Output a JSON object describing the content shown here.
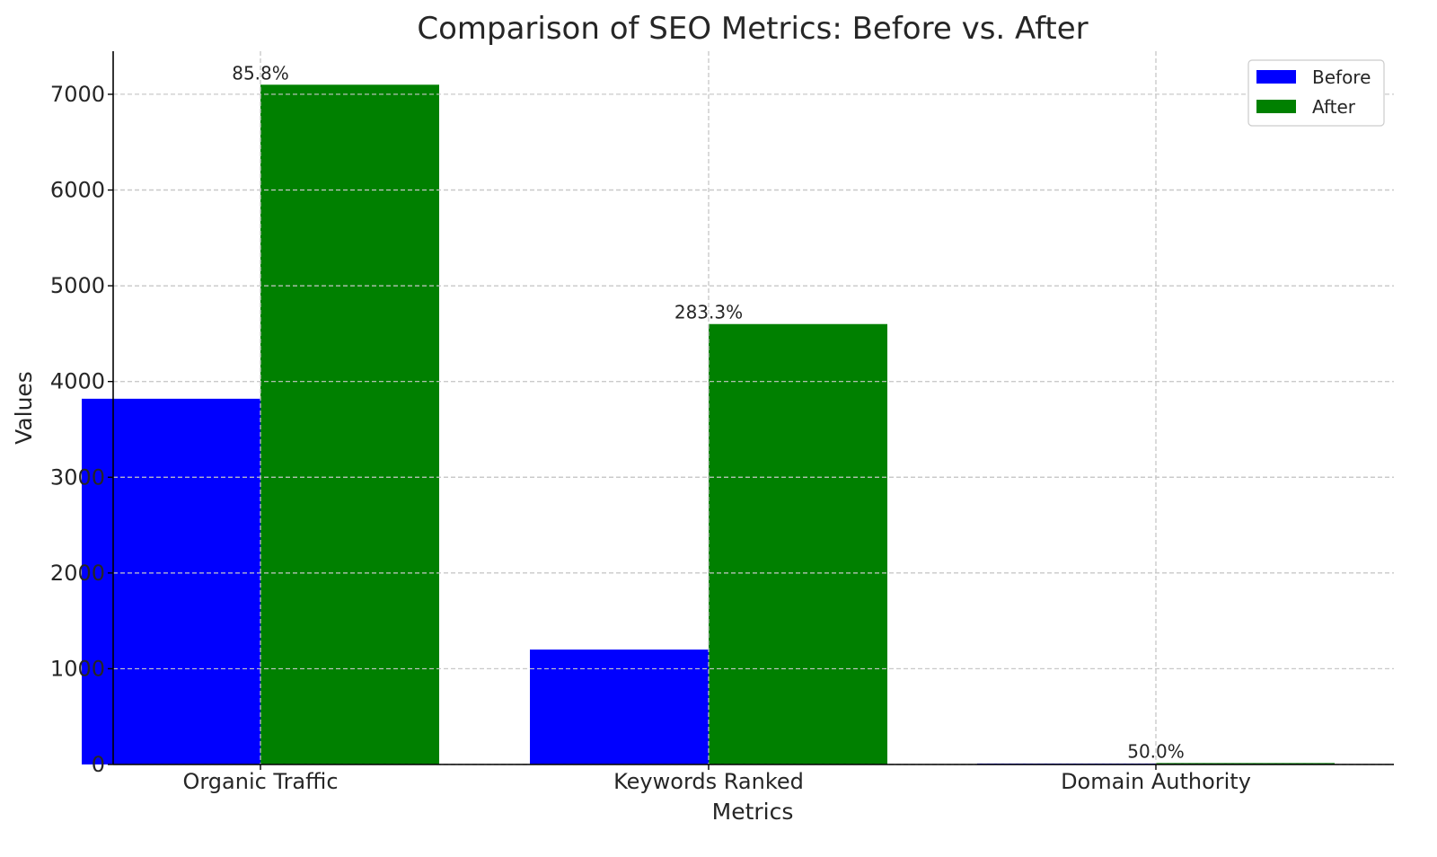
{
  "chart_data": {
    "type": "bar",
    "title": "Comparison of SEO Metrics: Before vs. After",
    "xlabel": "Metrics",
    "ylabel": "Values",
    "categories": [
      "Organic Traffic",
      "Keywords Ranked",
      "Domain Authority"
    ],
    "series": [
      {
        "name": "Before",
        "color": "#0000ff",
        "values": [
          3820,
          1200,
          10
        ]
      },
      {
        "name": "After",
        "color": "#008000",
        "values": [
          7100,
          4600,
          15
        ]
      }
    ],
    "data_labels": [
      "85.8%",
      "283.3%",
      "50.0%"
    ],
    "ylim": [
      0,
      7450
    ],
    "yticks": [
      0,
      1000,
      2000,
      3000,
      4000,
      5000,
      6000,
      7000
    ],
    "grid": true,
    "legend": "top-right"
  }
}
